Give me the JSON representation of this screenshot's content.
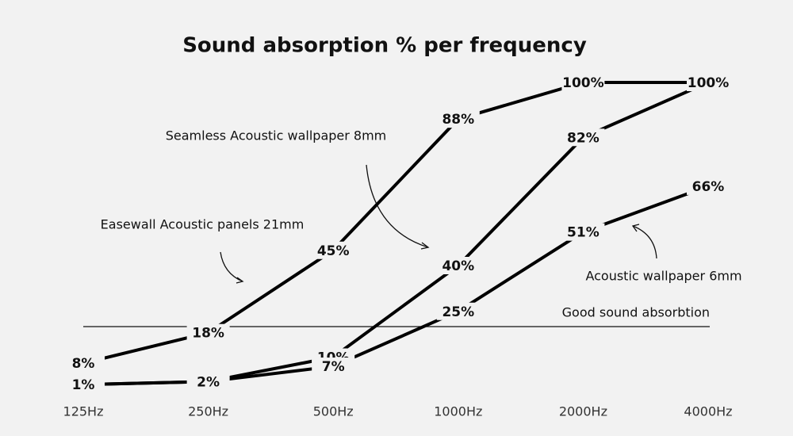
{
  "chart_data": {
    "type": "line",
    "title": "Sound absorption % per frequency",
    "categories": [
      "125Hz",
      "250Hz",
      "500Hz",
      "1000Hz",
      "2000Hz",
      "4000Hz"
    ],
    "ylim": [
      0,
      100
    ],
    "reference_line": {
      "value": 20,
      "label": "Good sound absorbtion"
    },
    "series": [
      {
        "name": "Easewall Acoustic panels 21mm",
        "color": "#000000",
        "values": [
          8,
          18,
          45,
          88,
          100,
          100
        ],
        "value_labels": [
          "8%",
          "18%",
          "45%",
          "88%",
          "100%",
          "100%"
        ]
      },
      {
        "name": "Seamless Acoustic wallpaper 8mm",
        "color": "#000000",
        "values": [
          1,
          2,
          10,
          40,
          82,
          100
        ],
        "value_labels": [
          null,
          null,
          "10%",
          "40%",
          "82%",
          null
        ]
      },
      {
        "name": "Acoustic wallpaper 6mm",
        "color": "#000000",
        "values": [
          1,
          2,
          7,
          25,
          51,
          66
        ],
        "value_labels": [
          "1%",
          "2%",
          "7%",
          "25%",
          "51%",
          "66%"
        ]
      }
    ]
  }
}
